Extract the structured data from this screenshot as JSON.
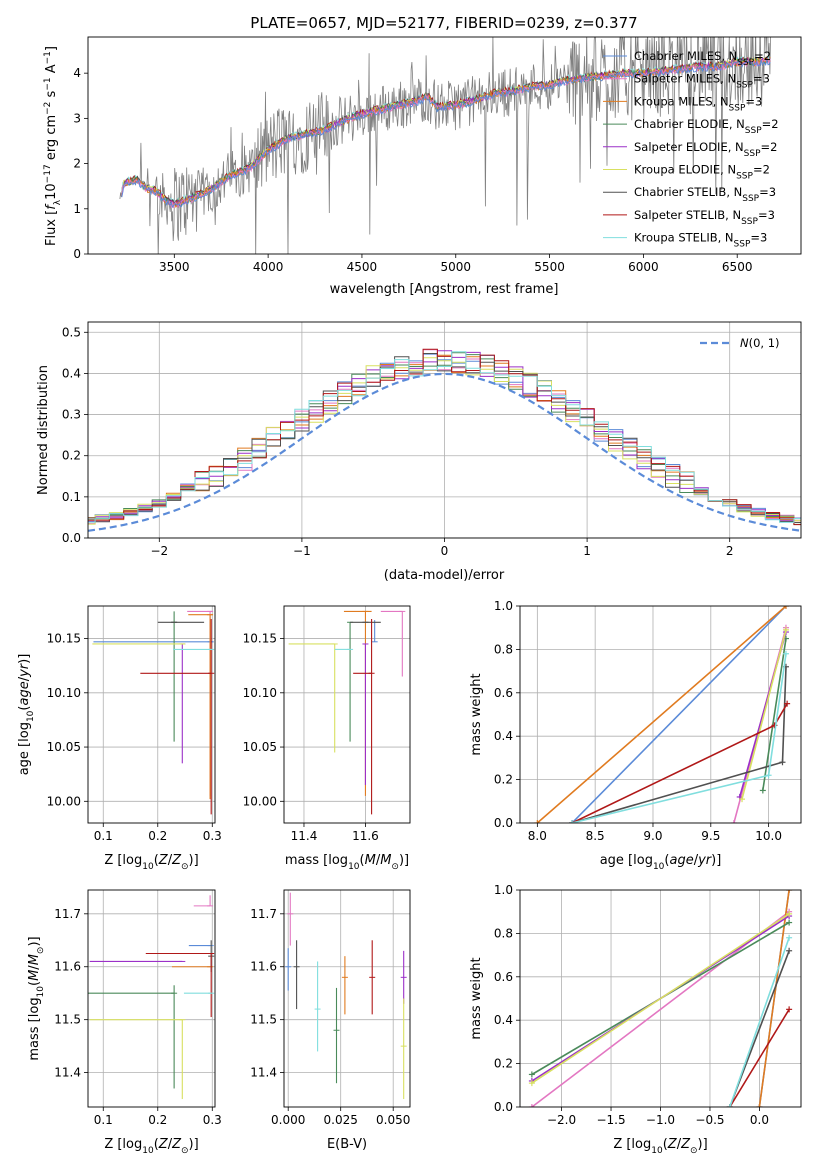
{
  "title": "PLATE=0657, MJD=52177, FIBERID=0239, z=0.377",
  "models": [
    {
      "name": "Chabrier MILES, N_SSP=2",
      "base": "Chabrier MILES, N",
      "sub": "SSP",
      "tail": "=2",
      "color": "#5b8bd8"
    },
    {
      "name": "Salpeter MILES, N_SSP=3",
      "base": "Salpeter MILES, N",
      "sub": "SSP",
      "tail": "=3",
      "color": "#e377c2"
    },
    {
      "name": "Kroupa MILES, N_SSP=3",
      "base": "Kroupa MILES, N",
      "sub": "SSP",
      "tail": "=3",
      "color": "#e07b20"
    },
    {
      "name": "Chabrier ELODIE, N_SSP=2",
      "base": "Chabrier ELODIE, N",
      "sub": "SSP",
      "tail": "=2",
      "color": "#4a8a5a"
    },
    {
      "name": "Salpeter ELODIE, N_SSP=2",
      "base": "Salpeter ELODIE, N",
      "sub": "SSP",
      "tail": "=2",
      "color": "#9b30c8"
    },
    {
      "name": "Kroupa ELODIE, N_SSP=2",
      "base": "Kroupa ELODIE, N",
      "sub": "SSP",
      "tail": "=2",
      "color": "#d8e060"
    },
    {
      "name": "Chabrier STELIB, N_SSP=3",
      "base": "Chabrier STELIB, N",
      "sub": "SSP",
      "tail": "=3",
      "color": "#505050"
    },
    {
      "name": "Salpeter STELIB, N_SSP=3",
      "base": "Salpeter STELIB, N",
      "sub": "SSP",
      "tail": "=3",
      "color": "#b01818"
    },
    {
      "name": "Kroupa STELIB, N_SSP=3",
      "base": "Kroupa STELIB, N",
      "sub": "SSP",
      "tail": "=3",
      "color": "#80dede"
    }
  ],
  "chart_data": [
    {
      "id": "spectrum",
      "type": "line",
      "xlabel": "wavelength [Angstrom, rest frame]",
      "ylabel": "Flux [f_λ10^-17 erg cm^-2 s^-1 A^-1]",
      "xlim": [
        3040,
        6840
      ],
      "ylim": [
        0,
        4.8
      ],
      "xticks": [
        3500,
        4000,
        4500,
        5000,
        5500,
        6000,
        6500
      ],
      "yticks": [
        0,
        1,
        2,
        3,
        4
      ],
      "continuum_knots": {
        "x": [
          3200,
          3230,
          3260,
          3300,
          3350,
          3400,
          3450,
          3500,
          3600,
          3700,
          3800,
          3900,
          3950,
          4000,
          4100,
          4200,
          4300,
          4400,
          4500,
          4600,
          4700,
          4800,
          4850,
          4900,
          5000,
          5100,
          5200,
          5300,
          5400,
          5500,
          5600,
          5700,
          5800,
          5900,
          6000,
          6100,
          6200,
          6300,
          6400,
          6500,
          6600,
          6680
        ],
        "y": [
          1.0,
          1.55,
          1.6,
          1.65,
          1.45,
          1.4,
          1.2,
          1.1,
          1.25,
          1.45,
          1.75,
          1.9,
          2.1,
          2.3,
          2.55,
          2.65,
          2.75,
          2.95,
          3.1,
          3.2,
          3.3,
          3.4,
          3.5,
          3.25,
          3.3,
          3.4,
          3.55,
          3.6,
          3.7,
          3.75,
          3.85,
          3.9,
          3.95,
          4.0,
          4.0,
          4.05,
          4.1,
          4.15,
          4.15,
          4.25,
          4.25,
          4.3
        ]
      },
      "data_wavelength_range": [
        3210,
        6680
      ],
      "legend_loc": "upper right",
      "grid": false
    },
    {
      "id": "residuals",
      "type": "line",
      "xlabel": "(data-model)/error",
      "ylabel": "Normed distribution",
      "xlim": [
        -2.5,
        2.5
      ],
      "ylim": [
        0,
        0.525
      ],
      "xticks": [
        -2,
        -1,
        0,
        1,
        2
      ],
      "yticks": [
        0.0,
        0.1,
        0.2,
        0.3,
        0.4,
        0.5
      ],
      "bin_width": 0.1,
      "reference": {
        "name": "N(0,1)",
        "mu": 0,
        "sigma": 1,
        "style": "dashed",
        "color": "#5b8bd8"
      },
      "legend_loc": "upper right",
      "grid": true
    },
    {
      "id": "age_vs_Z",
      "type": "scatter",
      "xlabel": "Z [log10(Z/Z_sun)]",
      "ylabel": "age [log10(age/yr)]",
      "xlim": [
        0.072,
        0.305
      ],
      "ylim": [
        9.98,
        10.18
      ],
      "xticks": [
        0.1,
        0.2,
        0.3
      ],
      "yticks": [
        10.0,
        10.05,
        10.1,
        10.15
      ],
      "ytick_labels": [
        "10.00",
        "10.05",
        "10.10",
        "10.15"
      ],
      "grid": true,
      "points": [
        {
          "series": 0,
          "x": 0.297,
          "y": 10.147,
          "xerr": [
            0.215,
            0.005
          ],
          "yerr": [
            0.0,
            0.0
          ]
        },
        {
          "series": 1,
          "x": 0.296,
          "y": 10.175,
          "xerr": [
            0.042,
            0.005
          ],
          "yerr": [
            0.17,
            0.0
          ]
        },
        {
          "series": 2,
          "x": 0.296,
          "y": 10.172,
          "xerr": [
            0.04,
            0.005
          ],
          "yerr": [
            0.17,
            0.0
          ]
        },
        {
          "series": 3,
          "x": 0.23,
          "y": 10.165,
          "xerr": [
            0.0,
            0.0
          ],
          "yerr": [
            0.11,
            0.01
          ]
        },
        {
          "series": 4,
          "x": 0.245,
          "y": 10.145,
          "xerr": [
            0.0,
            0.0
          ],
          "yerr": [
            0.11,
            0.0
          ]
        },
        {
          "series": 5,
          "x": 0.245,
          "y": 10.145,
          "xerr": [
            0.165,
            0.005
          ],
          "yerr": [
            0.0,
            0.0
          ]
        },
        {
          "series": 6,
          "x": 0.23,
          "y": 10.165,
          "xerr": [
            0.03,
            0.055
          ],
          "yerr": [
            0.0,
            0.0
          ]
        },
        {
          "series": 7,
          "x": 0.298,
          "y": 10.118,
          "xerr": [
            0.13,
            0.0
          ],
          "yerr": [
            0.13,
            0.05
          ]
        },
        {
          "series": 8,
          "x": 0.298,
          "y": 10.14,
          "xerr": [
            0.07,
            0.0
          ],
          "yerr": [
            0.0,
            0.0
          ]
        }
      ]
    },
    {
      "id": "age_vs_mass",
      "type": "scatter",
      "xlabel": "mass [log10(M/M_sun)]",
      "ylabel": "",
      "xlim": [
        11.335,
        11.745
      ],
      "ylim": [
        9.98,
        10.18
      ],
      "xticks": [
        11.4,
        11.6
      ],
      "yticks": [
        10.0,
        10.05,
        10.1,
        10.15
      ],
      "ytick_labels": [
        "10.00",
        "10.05",
        "10.10",
        "10.15"
      ],
      "grid": true,
      "points": [
        {
          "series": 0,
          "x": 11.63,
          "y": 10.147,
          "xerr": [
            0.0,
            0.0
          ],
          "yerr": [
            0.0,
            0.02
          ]
        },
        {
          "series": 1,
          "x": 11.72,
          "y": 10.175,
          "xerr": [
            0.07,
            0.0
          ],
          "yerr": [
            0.06,
            0.0
          ]
        },
        {
          "series": 2,
          "x": 11.6,
          "y": 10.175,
          "xerr": [
            0.07,
            0.02
          ],
          "yerr": [
            0.17,
            0.0
          ]
        },
        {
          "series": 3,
          "x": 11.55,
          "y": 10.165,
          "xerr": [
            0.0,
            0.0
          ],
          "yerr": [
            0.11,
            0.0
          ]
        },
        {
          "series": 4,
          "x": 11.6,
          "y": 10.145,
          "xerr": [
            0.0,
            0.0
          ],
          "yerr": [
            0.13,
            0.0
          ]
        },
        {
          "series": 5,
          "x": 11.5,
          "y": 10.145,
          "xerr": [
            0.15,
            0.0
          ],
          "yerr": [
            0.1,
            0.0
          ]
        },
        {
          "series": 6,
          "x": 11.6,
          "y": 10.165,
          "xerr": [
            0.05,
            0.05
          ],
          "yerr": [
            0.0,
            0.0
          ]
        },
        {
          "series": 7,
          "x": 11.62,
          "y": 10.118,
          "xerr": [
            0.06,
            0.0
          ],
          "yerr": [
            0.13,
            0.05
          ]
        },
        {
          "series": 8,
          "x": 11.55,
          "y": 10.14,
          "xerr": [
            0.05,
            0.0
          ],
          "yerr": [
            0.0,
            0.0
          ]
        }
      ]
    },
    {
      "id": "massweight_vs_age",
      "type": "line",
      "xlabel": "age [log10(age/yr)]",
      "ylabel": "mass weight",
      "xlim": [
        7.85,
        10.28
      ],
      "ylim": [
        0,
        1.0
      ],
      "xticks": [
        8.0,
        8.5,
        9.0,
        9.5,
        10.0
      ],
      "yticks": [
        0.0,
        0.2,
        0.4,
        0.6,
        0.8,
        1.0
      ],
      "grid": true,
      "series_points": [
        {
          "series": 0,
          "x": [
            8.3,
            10.15
          ],
          "y": [
            0.0,
            1.0
          ]
        },
        {
          "series": 1,
          "x": [
            9.7,
            10.15
          ],
          "y": [
            0.0,
            0.9
          ]
        },
        {
          "series": 2,
          "x": [
            8.0,
            10.15
          ],
          "y": [
            0.0,
            1.0
          ]
        },
        {
          "series": 3,
          "x": [
            9.95,
            10.15
          ],
          "y": [
            0.15,
            0.85
          ]
        },
        {
          "series": 4,
          "x": [
            9.75,
            10.15
          ],
          "y": [
            0.12,
            0.88
          ]
        },
        {
          "series": 5,
          "x": [
            9.77,
            10.15
          ],
          "y": [
            0.11,
            0.89
          ]
        },
        {
          "series": 6,
          "x": [
            8.3,
            10.12,
            10.15
          ],
          "y": [
            0.0,
            0.28,
            0.72
          ]
        },
        {
          "series": 7,
          "x": [
            8.3,
            10.05,
            10.16
          ],
          "y": [
            0.0,
            0.45,
            0.55
          ]
        },
        {
          "series": 8,
          "x": [
            8.3,
            10.0,
            10.15
          ],
          "y": [
            0.0,
            0.22,
            0.78
          ]
        }
      ]
    },
    {
      "id": "mass_vs_Z",
      "type": "scatter",
      "xlabel": "Z [log10(Z/Z_sun)]",
      "ylabel": "mass [log10(M/M_sun)]",
      "xlim": [
        0.072,
        0.305
      ],
      "ylim": [
        11.335,
        11.745
      ],
      "xticks": [
        0.1,
        0.2,
        0.3
      ],
      "yticks": [
        11.4,
        11.5,
        11.6,
        11.7
      ],
      "grid": true,
      "points": [
        {
          "series": 0,
          "x": 0.297,
          "y": 11.64,
          "xerr": [
            0.04,
            0.0
          ],
          "yerr": [
            0.0,
            0.0
          ]
        },
        {
          "series": 1,
          "x": 0.296,
          "y": 11.715,
          "xerr": [
            0.03,
            0.0
          ],
          "yerr": [
            0.0,
            0.02
          ]
        },
        {
          "series": 2,
          "x": 0.296,
          "y": 11.6,
          "xerr": [
            0.07,
            0.0
          ],
          "yerr": [
            0.0,
            0.0
          ]
        },
        {
          "series": 3,
          "x": 0.23,
          "y": 11.55,
          "xerr": [
            0.16,
            0.0
          ],
          "yerr": [
            0.18,
            0.015
          ]
        },
        {
          "series": 4,
          "x": 0.245,
          "y": 11.61,
          "xerr": [
            0.17,
            0.0
          ],
          "yerr": [
            0.0,
            0.0
          ]
        },
        {
          "series": 5,
          "x": 0.245,
          "y": 11.5,
          "xerr": [
            0.17,
            0.0
          ],
          "yerr": [
            0.15,
            0.0
          ]
        },
        {
          "series": 6,
          "x": 0.298,
          "y": 11.62,
          "xerr": [
            0.0,
            0.0
          ],
          "yerr": [
            0.03,
            0.03
          ]
        },
        {
          "series": 7,
          "x": 0.298,
          "y": 11.625,
          "xerr": [
            0.12,
            0.0
          ],
          "yerr": [
            0.12,
            0.0
          ]
        },
        {
          "series": 8,
          "x": 0.298,
          "y": 11.55,
          "xerr": [
            0.05,
            0.0
          ],
          "yerr": [
            0.0,
            0.0
          ]
        }
      ]
    },
    {
      "id": "mass_vs_ebv",
      "type": "scatter",
      "xlabel": "E(B-V)",
      "ylabel": "",
      "xlim": [
        -0.002,
        0.058
      ],
      "ylim": [
        11.335,
        11.745
      ],
      "xticks": [
        0.0,
        0.025,
        0.05
      ],
      "xtick_labels": [
        "0.000",
        "0.025",
        "0.050"
      ],
      "yticks": [
        11.4,
        11.5,
        11.6,
        11.7
      ],
      "grid": true,
      "points": [
        {
          "series": 0,
          "x": 0.0,
          "y": 11.6,
          "xerr": [
            0.0,
            0.0
          ],
          "yerr": [
            0.045,
            0.035
          ]
        },
        {
          "series": 1,
          "x": 0.001,
          "y": 11.7,
          "xerr": [
            0.0,
            0.0
          ],
          "yerr": [
            0.06,
            0.04
          ]
        },
        {
          "series": 2,
          "x": 0.027,
          "y": 11.58,
          "xerr": [
            0.0,
            0.0
          ],
          "yerr": [
            0.07,
            0.04
          ]
        },
        {
          "series": 3,
          "x": 0.023,
          "y": 11.48,
          "xerr": [
            0.0,
            0.0
          ],
          "yerr": [
            0.1,
            0.08
          ]
        },
        {
          "series": 4,
          "x": 0.055,
          "y": 11.58,
          "xerr": [
            0.0,
            0.0
          ],
          "yerr": [
            0.05,
            0.05
          ]
        },
        {
          "series": 5,
          "x": 0.055,
          "y": 11.45,
          "xerr": [
            0.0,
            0.0
          ],
          "yerr": [
            0.1,
            0.09
          ]
        },
        {
          "series": 6,
          "x": 0.004,
          "y": 11.6,
          "xerr": [
            0.0,
            0.0
          ],
          "yerr": [
            0.08,
            0.05
          ]
        },
        {
          "series": 7,
          "x": 0.04,
          "y": 11.58,
          "xerr": [
            0.0,
            0.0
          ],
          "yerr": [
            0.07,
            0.07
          ]
        },
        {
          "series": 8,
          "x": 0.014,
          "y": 11.52,
          "xerr": [
            0.0,
            0.0
          ],
          "yerr": [
            0.08,
            0.09
          ]
        }
      ]
    },
    {
      "id": "massweight_vs_Z",
      "type": "line",
      "xlabel": "Z [log10(Z/Z_sun)]",
      "ylabel": "mass weight",
      "xlim": [
        -2.42,
        0.42
      ],
      "ylim": [
        0,
        1.0
      ],
      "xticks": [
        -2.0,
        -1.5,
        -1.0,
        -0.5,
        0.0
      ],
      "yticks": [
        0.0,
        0.2,
        0.4,
        0.6,
        0.8,
        1.0
      ],
      "grid": true,
      "series_points": [
        {
          "series": 0,
          "x": [
            0.0,
            0.3
          ],
          "y": [
            0.0,
            1.0
          ]
        },
        {
          "series": 1,
          "x": [
            -2.3,
            0.3
          ],
          "y": [
            0.0,
            0.9
          ]
        },
        {
          "series": 2,
          "x": [
            0.0,
            0.3
          ],
          "y": [
            0.0,
            1.0
          ]
        },
        {
          "series": 3,
          "x": [
            -2.3,
            0.3
          ],
          "y": [
            0.15,
            0.85
          ]
        },
        {
          "series": 4,
          "x": [
            -2.3,
            0.3
          ],
          "y": [
            0.12,
            0.88
          ]
        },
        {
          "series": 5,
          "x": [
            -2.3,
            0.3
          ],
          "y": [
            0.11,
            0.89
          ]
        },
        {
          "series": 6,
          "x": [
            -0.3,
            0.3
          ],
          "y": [
            0.0,
            0.72
          ]
        },
        {
          "series": 7,
          "x": [
            -0.3,
            0.3
          ],
          "y": [
            0.0,
            0.45
          ]
        },
        {
          "series": 8,
          "x": [
            -0.3,
            0.3
          ],
          "y": [
            0.0,
            0.78
          ]
        }
      ]
    }
  ]
}
